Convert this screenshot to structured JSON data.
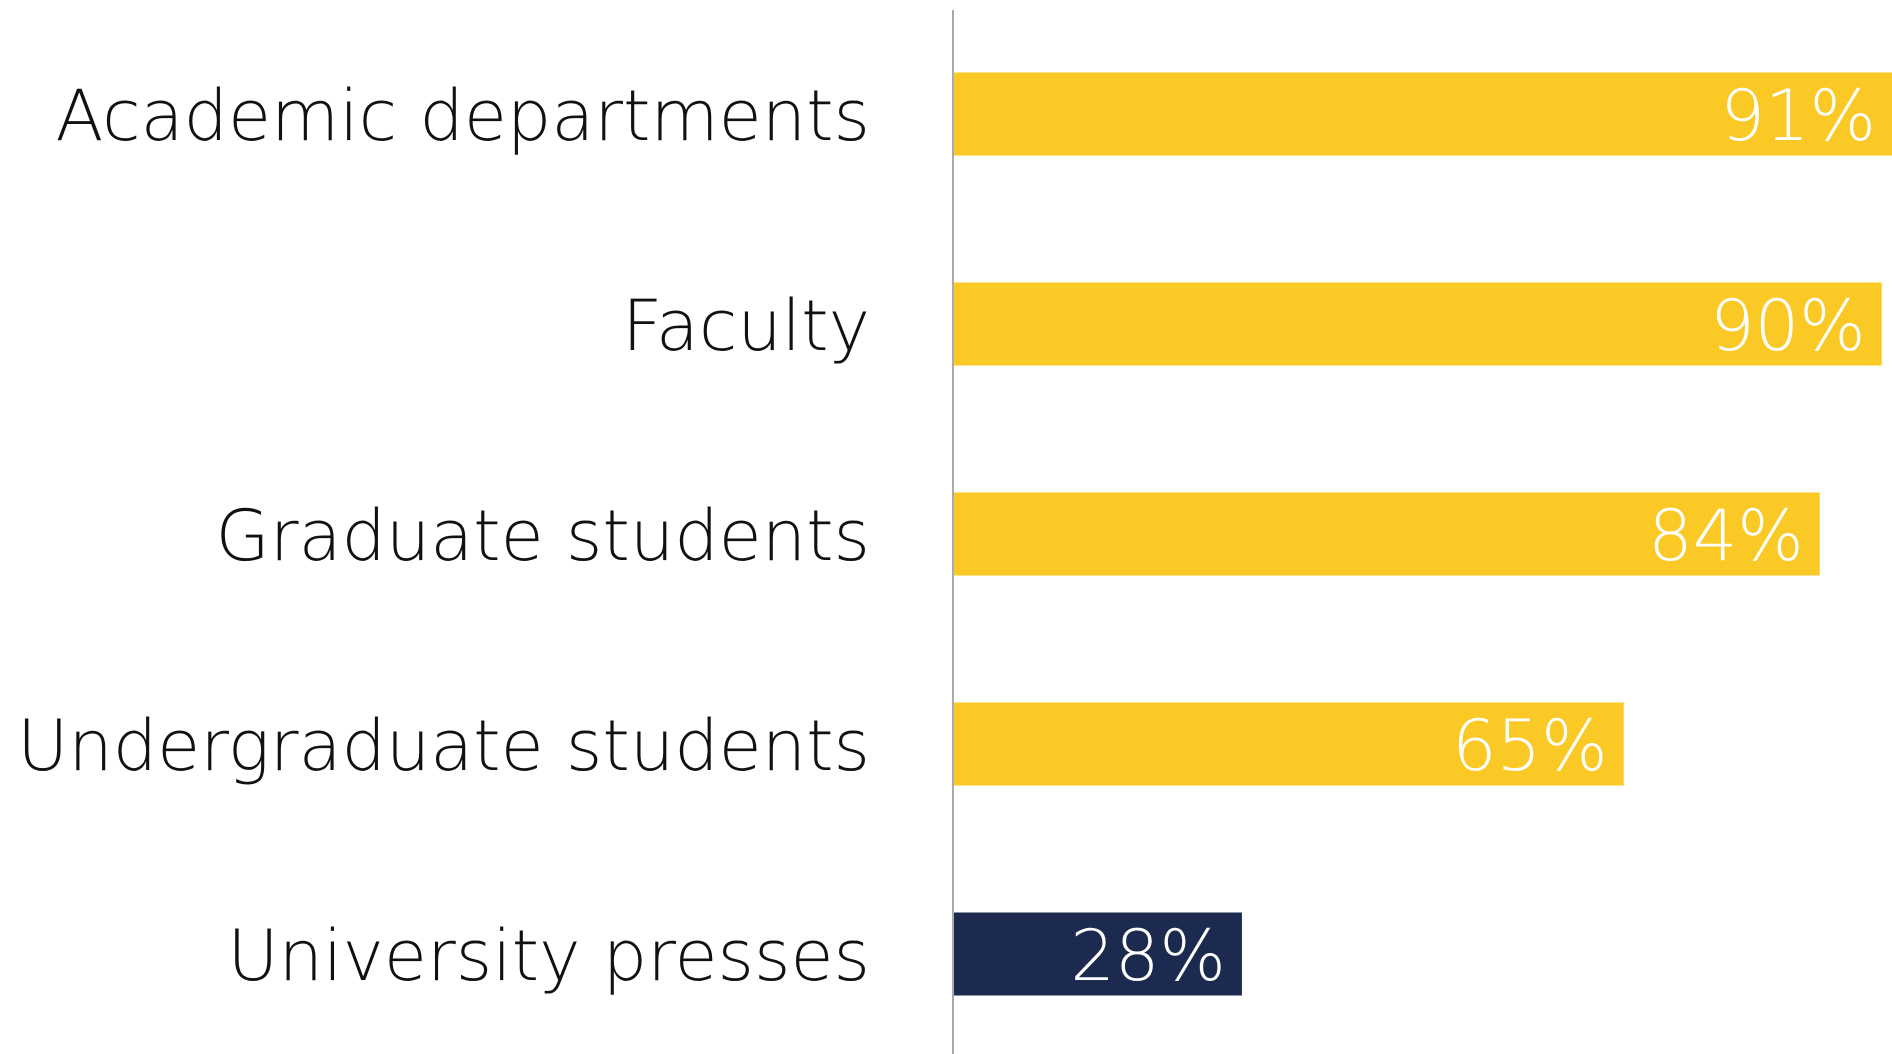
{
  "chart_data": {
    "type": "hbar",
    "categories": [
      "Academic departments",
      "Faculty",
      "Graduate students",
      "Undergraduate students",
      "University presses"
    ],
    "values": [
      91,
      90,
      84,
      65,
      28
    ],
    "value_labels": [
      "91%",
      "90%",
      "84%",
      "65%",
      "28%"
    ],
    "colors": [
      "#fbc926",
      "#fbc926",
      "#fbc926",
      "#fbc926",
      "#1b2a4e"
    ],
    "xlim": [
      0,
      91
    ]
  }
}
